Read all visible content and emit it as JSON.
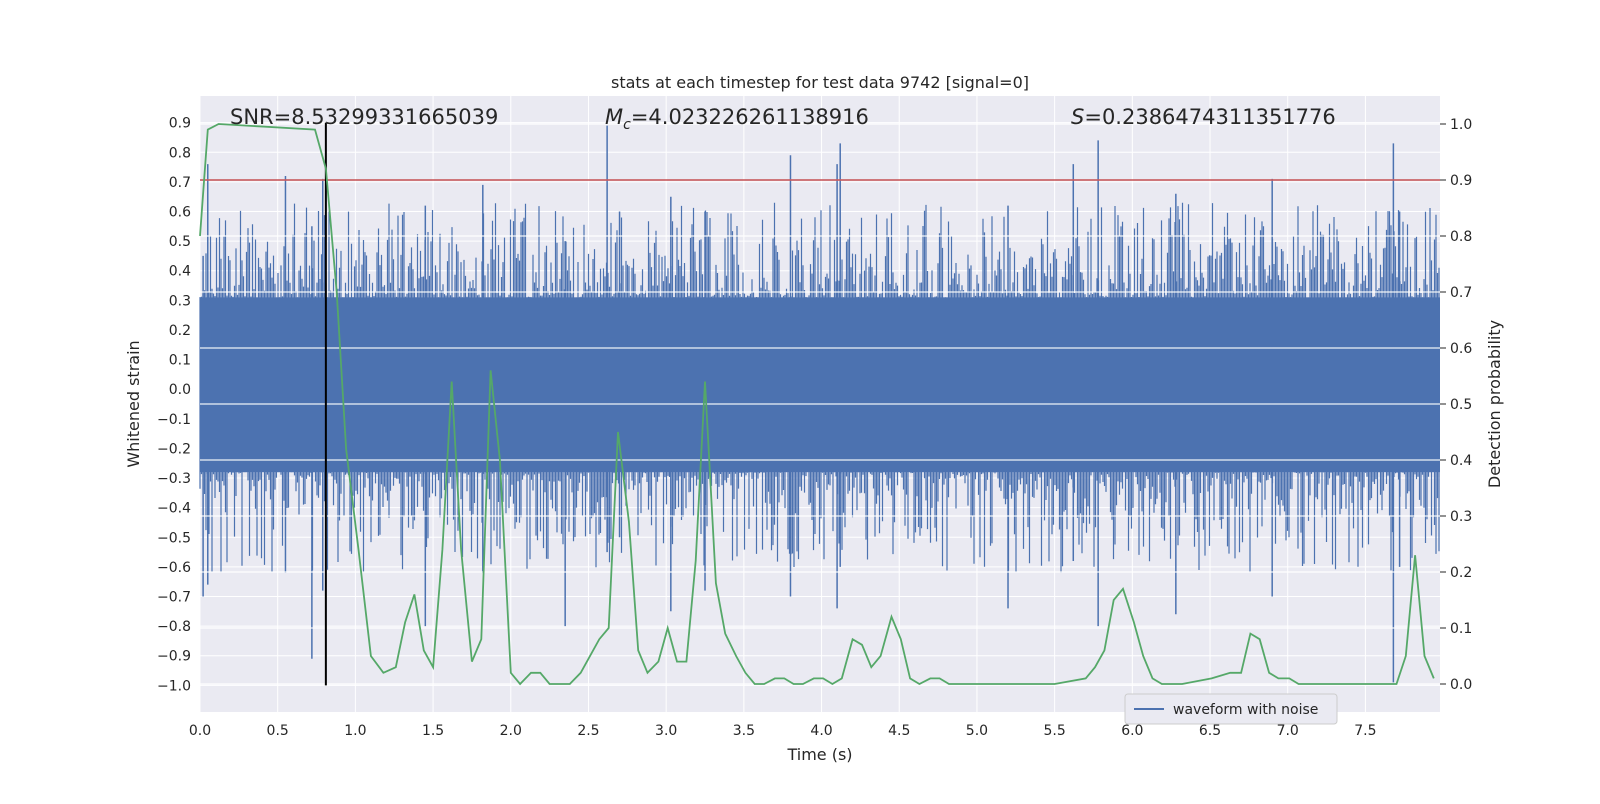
{
  "chart_data": {
    "type": "line",
    "title": "stats at each timestep for test data 9742 [signal=0]",
    "xlabel": "Time (s)",
    "ylabel_left": "Whitened strain",
    "ylabel_right": "Detection probability",
    "xlim": [
      0.0,
      7.98
    ],
    "ylim_left": [
      -1.09,
      0.99
    ],
    "ylim_right": [
      -0.05,
      1.05
    ],
    "x_ticks": [
      "0.0",
      "0.5",
      "1.0",
      "1.5",
      "2.0",
      "2.5",
      "3.0",
      "3.5",
      "4.0",
      "4.5",
      "5.0",
      "5.5",
      "6.0",
      "6.5",
      "7.0",
      "7.5"
    ],
    "y_left_ticks": [
      "0.9",
      "0.8",
      "0.7",
      "0.6",
      "0.5",
      "0.4",
      "0.3",
      "0.2",
      "0.1",
      "0.0",
      "-0.1",
      "-0.2",
      "-0.3",
      "-0.4",
      "-0.5",
      "-0.6",
      "-0.7",
      "-0.8",
      "-0.9",
      "-1.0"
    ],
    "y_right_ticks": [
      "1.0",
      "0.9",
      "0.8",
      "0.7",
      "0.6",
      "0.5",
      "0.4",
      "0.3",
      "0.2",
      "0.1",
      "0.0"
    ],
    "grid": true,
    "legend": {
      "placement": "lower-right",
      "entries": [
        "waveform with noise"
      ]
    },
    "annotations": {
      "snr": "SNR=8.53299331665039",
      "mc_symbol": "M",
      "mc_sub": "c",
      "mc_value": "=4.023226261138916",
      "s_symbol": "S",
      "s_value": "=0.2386474311351776"
    },
    "threshold": {
      "axis": "right",
      "value": 0.9,
      "color": "#c44e52"
    },
    "vertical_marker": {
      "x": 0.81,
      "y_range": [
        -1.0,
        0.9
      ],
      "color": "#000000"
    },
    "waveform": {
      "name": "waveform with noise",
      "color": "#4c72b0",
      "band": [
        -0.28,
        0.31
      ],
      "spikes": [
        {
          "x": 0.02,
          "lo": -0.7,
          "hi": 0.45
        },
        {
          "x": 0.05,
          "lo": -0.66,
          "hi": 0.76
        },
        {
          "x": 0.55,
          "lo": -0.62,
          "hi": 0.72
        },
        {
          "x": 0.72,
          "lo": -0.91,
          "hi": 0.55
        },
        {
          "x": 0.79,
          "lo": -0.68,
          "hi": 0.71
        },
        {
          "x": 1.45,
          "lo": -0.8,
          "hi": 0.62
        },
        {
          "x": 1.82,
          "lo": -0.62,
          "hi": 0.69
        },
        {
          "x": 2.35,
          "lo": -0.8,
          "hi": 0.5
        },
        {
          "x": 2.62,
          "lo": -0.55,
          "hi": 0.89
        },
        {
          "x": 2.7,
          "lo": -0.5,
          "hi": 0.6
        },
        {
          "x": 3.03,
          "lo": -0.75,
          "hi": 0.65
        },
        {
          "x": 3.25,
          "lo": -0.68,
          "hi": 0.6
        },
        {
          "x": 3.8,
          "lo": -0.7,
          "hi": 0.79
        },
        {
          "x": 4.1,
          "lo": -0.74,
          "hi": 0.76
        },
        {
          "x": 4.12,
          "lo": -0.6,
          "hi": 0.83
        },
        {
          "x": 5.2,
          "lo": -0.74,
          "hi": 0.62
        },
        {
          "x": 5.62,
          "lo": -0.58,
          "hi": 0.76
        },
        {
          "x": 5.78,
          "lo": -0.8,
          "hi": 0.84
        },
        {
          "x": 6.28,
          "lo": -0.76,
          "hi": 0.66
        },
        {
          "x": 6.9,
          "lo": -0.7,
          "hi": 0.71
        },
        {
          "x": 7.68,
          "lo": -0.99,
          "hi": 0.83
        },
        {
          "x": 7.72,
          "lo": -0.6,
          "hi": 0.6
        }
      ]
    },
    "detection_probability": {
      "color": "#55a868",
      "x": [
        0.0,
        0.05,
        0.12,
        0.74,
        0.81,
        0.88,
        0.94,
        1.02,
        1.1,
        1.18,
        1.26,
        1.32,
        1.38,
        1.44,
        1.5,
        1.56,
        1.62,
        1.68,
        1.75,
        1.81,
        1.87,
        1.93,
        2.0,
        2.06,
        2.13,
        2.19,
        2.25,
        2.32,
        2.38,
        2.45,
        2.57,
        2.63,
        2.69,
        2.76,
        2.82,
        2.88,
        2.95,
        3.01,
        3.07,
        3.13,
        3.19,
        3.25,
        3.32,
        3.38,
        3.45,
        3.51,
        3.57,
        3.63,
        3.7,
        3.76,
        3.82,
        3.88,
        3.95,
        4.01,
        4.07,
        4.13,
        4.2,
        4.26,
        4.32,
        4.38,
        4.45,
        4.51,
        4.57,
        4.63,
        4.7,
        4.76,
        4.82,
        4.88,
        4.95,
        5.1,
        5.3,
        5.5,
        5.7,
        5.76,
        5.82,
        5.88,
        5.94,
        6.01,
        6.07,
        6.13,
        6.19,
        6.26,
        6.32,
        6.51,
        6.63,
        6.7,
        6.76,
        6.82,
        6.88,
        6.94,
        7.01,
        7.07,
        7.13,
        7.2,
        7.26,
        7.32,
        7.45,
        7.57,
        7.7,
        7.76,
        7.82,
        7.88,
        7.94
      ],
      "y": [
        0.8,
        0.99,
        1.0,
        0.99,
        0.92,
        0.7,
        0.42,
        0.24,
        0.05,
        0.02,
        0.03,
        0.11,
        0.16,
        0.06,
        0.03,
        0.24,
        0.54,
        0.24,
        0.04,
        0.08,
        0.56,
        0.4,
        0.02,
        0.0,
        0.02,
        0.02,
        0.0,
        0.0,
        0.0,
        0.02,
        0.08,
        0.1,
        0.45,
        0.29,
        0.06,
        0.02,
        0.04,
        0.1,
        0.04,
        0.04,
        0.22,
        0.54,
        0.18,
        0.09,
        0.05,
        0.02,
        0.0,
        0.0,
        0.01,
        0.01,
        0.0,
        0.0,
        0.01,
        0.01,
        0.0,
        0.01,
        0.08,
        0.07,
        0.03,
        0.05,
        0.12,
        0.08,
        0.01,
        0.0,
        0.01,
        0.01,
        0.0,
        0.0,
        0.0,
        0.0,
        0.0,
        0.0,
        0.01,
        0.03,
        0.06,
        0.15,
        0.17,
        0.11,
        0.05,
        0.01,
        0.0,
        0.0,
        0.0,
        0.01,
        0.02,
        0.02,
        0.09,
        0.08,
        0.02,
        0.01,
        0.01,
        0.0,
        0.0,
        0.0,
        0.0,
        0.0,
        0.0,
        0.0,
        0.0,
        0.05,
        0.23,
        0.05,
        0.01
      ]
    }
  }
}
